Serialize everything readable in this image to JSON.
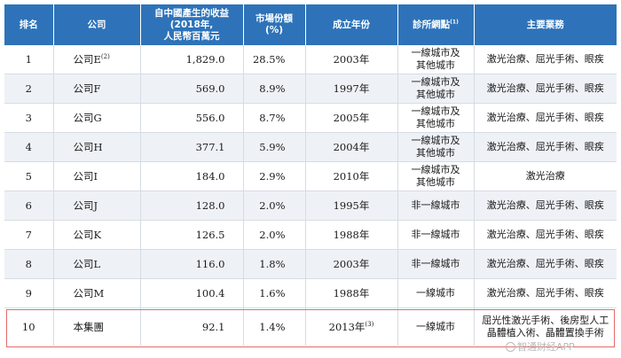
{
  "table": {
    "headers": {
      "rank": "排名",
      "company": "公司",
      "revenue": [
        "自中國產生的收益",
        "(2018年,",
        "人民幣百萬元"
      ],
      "share": [
        "市場份額",
        "(%)"
      ],
      "founded": "成立年份",
      "clinics": "診所網點",
      "clinics_note": "(1)",
      "business": "主要業務"
    },
    "rows": [
      {
        "rank": "1",
        "company": "公司E",
        "note": "(2)",
        "revenue": "1,829.0",
        "share": "28.5%",
        "year": "2003年",
        "year_note": "",
        "city": [
          "一線城市及",
          "其他城市"
        ],
        "business": [
          "激光治療、屈光手術、眼疾"
        ]
      },
      {
        "rank": "2",
        "company": "公司F",
        "note": "",
        "revenue": "569.0",
        "share": "8.9%",
        "year": "1997年",
        "year_note": "",
        "city": [
          "一線城市及",
          "其他城市"
        ],
        "business": [
          "激光治療、屈光手術、眼疾"
        ]
      },
      {
        "rank": "3",
        "company": "公司G",
        "note": "",
        "revenue": "556.0",
        "share": "8.7%",
        "year": "2005年",
        "year_note": "",
        "city": [
          "一線城市及",
          "其他城市"
        ],
        "business": [
          "激光治療、屈光手術、眼疾"
        ]
      },
      {
        "rank": "4",
        "company": "公司H",
        "note": "",
        "revenue": "377.1",
        "share": "5.9%",
        "year": "2004年",
        "year_note": "",
        "city": [
          "一線城市及",
          "其他城市"
        ],
        "business": [
          "激光治療、屈光手術、眼疾"
        ]
      },
      {
        "rank": "5",
        "company": "公司I",
        "note": "",
        "revenue": "184.0",
        "share": "2.9%",
        "year": "2010年",
        "year_note": "",
        "city": [
          "一線城市及",
          "其他城市"
        ],
        "business": [
          "激光治療"
        ]
      },
      {
        "rank": "6",
        "company": "公司J",
        "note": "",
        "revenue": "128.0",
        "share": "2.0%",
        "year": "1995年",
        "year_note": "",
        "city": [
          "非一線城市"
        ],
        "business": [
          "激光治療、屈光手術、眼疾"
        ]
      },
      {
        "rank": "7",
        "company": "公司K",
        "note": "",
        "revenue": "126.5",
        "share": "2.0%",
        "year": "1988年",
        "year_note": "",
        "city": [
          "非一線城市"
        ],
        "business": [
          "激光治療、屈光手術、眼疾"
        ]
      },
      {
        "rank": "8",
        "company": "公司L",
        "note": "",
        "revenue": "116.0",
        "share": "1.8%",
        "year": "2003年",
        "year_note": "",
        "city": [
          "非一線城市"
        ],
        "business": [
          "激光治療、屈光手術、眼疾"
        ]
      },
      {
        "rank": "9",
        "company": "公司M",
        "note": "",
        "revenue": "100.4",
        "share": "1.6%",
        "year": "1988年",
        "year_note": "",
        "city": [
          "一線城市"
        ],
        "business": [
          "激光治療、屈光手術、眼疾"
        ]
      },
      {
        "rank": "10",
        "company": "本集團",
        "note": "",
        "revenue": "92.1",
        "share": "1.4%",
        "year": "2013年",
        "year_note": "(3)",
        "city": [
          "一線城市"
        ],
        "business": [
          "屈光性激光手術、後房型人工",
          "晶體植入術、晶體置換手術"
        ]
      }
    ]
  },
  "watermark": "智通财经APP",
  "colors": {
    "header_bg": "#2e73b9",
    "alt_row_bg": "#eef2f7",
    "highlight_border": "#e56a6a"
  }
}
